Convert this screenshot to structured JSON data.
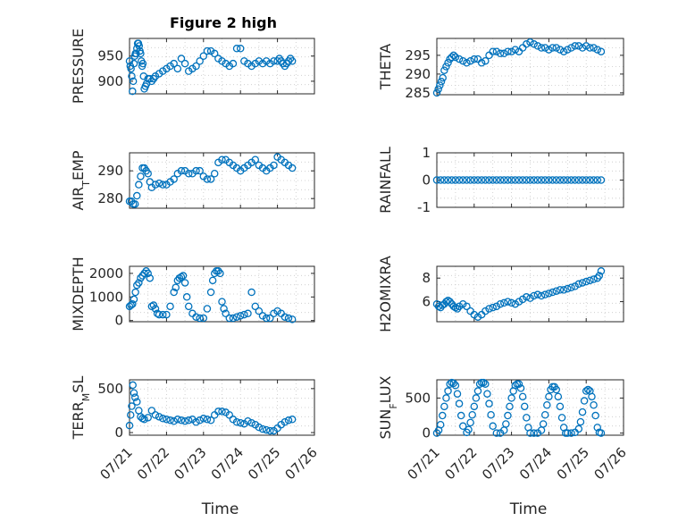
{
  "figure_title": "Figure 2 high",
  "colors": {
    "marker": "#0072BD",
    "axis": "#262626",
    "grid": "#c8c8c8"
  },
  "chart_data": [
    {
      "type": "scatter",
      "title": "Figure 2 high",
      "ylabel": "PRESSURE",
      "xlabel": "",
      "xlim": [
        0,
        5
      ],
      "ylim": [
        875,
        985
      ],
      "yticks": [
        900,
        950
      ],
      "grid": true,
      "x": [
        0,
        0.02,
        0.04,
        0.06,
        0.08,
        0.1,
        0.12,
        0.14,
        0.16,
        0.18,
        0.2,
        0.22,
        0.24,
        0.26,
        0.28,
        0.3,
        0.32,
        0.34,
        0.36,
        0.38,
        0.4,
        0.43,
        0.46,
        0.5,
        0.55,
        0.6,
        0.65,
        0.7,
        0.8,
        0.9,
        1.0,
        1.1,
        1.2,
        1.3,
        1.4,
        1.5,
        1.6,
        1.7,
        1.8,
        1.9,
        2.0,
        2.1,
        2.2,
        2.3,
        2.4,
        2.5,
        2.6,
        2.7,
        2.8,
        2.9,
        3.0,
        3.1,
        3.2,
        3.3,
        3.4,
        3.5,
        3.6,
        3.7,
        3.8,
        3.9,
        4.0,
        4.05,
        4.1,
        4.15,
        4.2,
        4.25,
        4.3,
        4.35,
        4.4
      ],
      "y": [
        940,
        930,
        925,
        910,
        880,
        900,
        935,
        950,
        955,
        955,
        965,
        975,
        975,
        970,
        960,
        955,
        940,
        930,
        935,
        910,
        885,
        890,
        895,
        905,
        905,
        900,
        905,
        910,
        915,
        920,
        925,
        930,
        935,
        925,
        945,
        935,
        920,
        925,
        930,
        940,
        950,
        960,
        960,
        955,
        945,
        940,
        935,
        930,
        935,
        965,
        965,
        940,
        935,
        930,
        935,
        940,
        935,
        940,
        935,
        940,
        940,
        945,
        940,
        935,
        930,
        935,
        940,
        945,
        940
      ]
    },
    {
      "type": "scatter",
      "title": "",
      "ylabel": "THETA",
      "xlabel": "",
      "xlim": [
        0,
        5
      ],
      "ylim": [
        284.5,
        299.5
      ],
      "yticks": [
        285,
        290,
        295
      ],
      "grid": true,
      "x": [
        0,
        0.04,
        0.08,
        0.12,
        0.16,
        0.2,
        0.25,
        0.3,
        0.35,
        0.4,
        0.45,
        0.5,
        0.6,
        0.7,
        0.8,
        0.9,
        1.0,
        1.1,
        1.2,
        1.3,
        1.4,
        1.5,
        1.6,
        1.7,
        1.8,
        1.9,
        2.0,
        2.1,
        2.2,
        2.3,
        2.4,
        2.5,
        2.6,
        2.7,
        2.8,
        2.9,
        3.0,
        3.1,
        3.2,
        3.3,
        3.4,
        3.5,
        3.6,
        3.7,
        3.8,
        3.9,
        4.0,
        4.1,
        4.2,
        4.3,
        4.4
      ],
      "y": [
        285,
        286,
        287,
        288,
        289,
        291,
        292,
        293,
        294,
        294.5,
        295,
        294.5,
        294,
        293.5,
        293,
        293.5,
        294,
        294,
        293,
        293.5,
        295,
        296,
        296,
        295.5,
        295.5,
        296,
        296,
        296.5,
        296,
        297,
        298,
        298.5,
        298,
        297.5,
        297,
        297,
        296.5,
        297,
        297,
        296.5,
        296,
        296.5,
        297,
        297.5,
        297.5,
        297,
        297.5,
        297,
        297,
        296.5,
        296
      ]
    },
    {
      "type": "scatter",
      "title": "",
      "ylabel": "AIR_TEMP",
      "xlabel": "",
      "xlim": [
        0,
        5
      ],
      "ylim": [
        276.5,
        296.5
      ],
      "yticks": [
        280,
        290
      ],
      "grid": true,
      "x": [
        0,
        0.05,
        0.1,
        0.15,
        0.2,
        0.25,
        0.3,
        0.35,
        0.4,
        0.45,
        0.5,
        0.55,
        0.6,
        0.7,
        0.8,
        0.9,
        1.0,
        1.1,
        1.2,
        1.3,
        1.4,
        1.5,
        1.6,
        1.7,
        1.8,
        1.9,
        2.0,
        2.1,
        2.2,
        2.3,
        2.4,
        2.5,
        2.6,
        2.7,
        2.8,
        2.9,
        3.0,
        3.1,
        3.2,
        3.3,
        3.4,
        3.5,
        3.6,
        3.7,
        3.8,
        3.9,
        4.0,
        4.1,
        4.2,
        4.3,
        4.4
      ],
      "y": [
        279,
        279,
        278,
        278,
        281,
        285,
        288,
        291,
        291,
        290,
        289,
        286,
        284,
        285,
        285.5,
        285,
        285,
        286,
        287,
        289,
        290,
        290,
        289,
        289,
        290,
        290,
        288,
        287,
        287,
        289,
        293,
        294,
        294,
        293,
        292,
        291,
        290,
        291,
        292,
        293,
        294,
        292,
        291,
        290,
        291,
        292,
        295,
        294,
        293,
        292,
        291
      ]
    },
    {
      "type": "scatter",
      "title": "",
      "ylabel": "RAINFALL",
      "xlabel": "",
      "xlim": [
        0,
        5
      ],
      "ylim": [
        -1,
        1
      ],
      "yticks": [
        -1,
        0,
        1
      ],
      "grid": true,
      "x": [
        0,
        0.1,
        0.2,
        0.3,
        0.4,
        0.5,
        0.6,
        0.7,
        0.8,
        0.9,
        1.0,
        1.1,
        1.2,
        1.3,
        1.4,
        1.5,
        1.6,
        1.7,
        1.8,
        1.9,
        2.0,
        2.1,
        2.2,
        2.3,
        2.4,
        2.5,
        2.6,
        2.7,
        2.8,
        2.9,
        3.0,
        3.1,
        3.2,
        3.3,
        3.4,
        3.5,
        3.6,
        3.7,
        3.8,
        3.9,
        4.0,
        4.1,
        4.2,
        4.3,
        4.4
      ],
      "y": [
        0,
        0,
        0,
        0,
        0,
        0,
        0,
        0,
        0,
        0,
        0,
        0,
        0,
        0,
        0,
        0,
        0,
        0,
        0,
        0,
        0,
        0,
        0,
        0,
        0,
        0,
        0,
        0,
        0,
        0,
        0,
        0,
        0,
        0,
        0,
        0,
        0,
        0,
        0,
        0,
        0,
        0,
        0,
        0,
        0
      ]
    },
    {
      "type": "scatter",
      "title": "",
      "ylabel": "MIXDEPTH",
      "xlabel": "",
      "xlim": [
        0,
        5
      ],
      "ylim": [
        -50,
        2300
      ],
      "yticks": [
        0,
        1000,
        2000
      ],
      "grid": true,
      "x": [
        0,
        0.04,
        0.08,
        0.12,
        0.16,
        0.2,
        0.25,
        0.3,
        0.35,
        0.4,
        0.45,
        0.5,
        0.55,
        0.6,
        0.65,
        0.7,
        0.75,
        0.8,
        0.9,
        1.0,
        1.1,
        1.2,
        1.25,
        1.3,
        1.35,
        1.4,
        1.45,
        1.5,
        1.55,
        1.6,
        1.7,
        1.8,
        1.9,
        2.0,
        2.1,
        2.2,
        2.25,
        2.3,
        2.35,
        2.4,
        2.45,
        2.5,
        2.55,
        2.6,
        2.7,
        2.8,
        2.9,
        3.0,
        3.1,
        3.2,
        3.3,
        3.4,
        3.5,
        3.6,
        3.7,
        3.8,
        3.9,
        4.0,
        4.1,
        4.2,
        4.3,
        4.4
      ],
      "y": [
        600,
        650,
        700,
        900,
        1200,
        1500,
        1600,
        1800,
        1900,
        2000,
        2100,
        2000,
        1800,
        600,
        650,
        500,
        300,
        250,
        250,
        250,
        600,
        1200,
        1400,
        1700,
        1800,
        1850,
        1900,
        1600,
        1000,
        600,
        300,
        150,
        100,
        100,
        500,
        1200,
        1700,
        2000,
        2100,
        2100,
        2000,
        800,
        500,
        300,
        100,
        100,
        150,
        200,
        250,
        300,
        1200,
        600,
        400,
        200,
        100,
        100,
        300,
        400,
        300,
        150,
        100,
        50
      ]
    },
    {
      "type": "scatter",
      "title": "",
      "ylabel": "H2OMIXRA",
      "xlabel": "",
      "xlim": [
        0,
        5
      ],
      "ylim": [
        4.3,
        9.0
      ],
      "yticks": [
        6,
        8
      ],
      "grid": true,
      "x": [
        0,
        0.05,
        0.1,
        0.15,
        0.2,
        0.25,
        0.3,
        0.35,
        0.4,
        0.45,
        0.5,
        0.55,
        0.6,
        0.7,
        0.8,
        0.9,
        1.0,
        1.1,
        1.2,
        1.3,
        1.4,
        1.5,
        1.6,
        1.7,
        1.8,
        1.9,
        2.0,
        2.1,
        2.2,
        2.3,
        2.4,
        2.5,
        2.6,
        2.7,
        2.8,
        2.9,
        3.0,
        3.1,
        3.2,
        3.3,
        3.4,
        3.5,
        3.6,
        3.7,
        3.8,
        3.9,
        4.0,
        4.1,
        4.2,
        4.3,
        4.35,
        4.4
      ],
      "y": [
        5.8,
        5.6,
        5.5,
        5.7,
        5.8,
        6.0,
        6.1,
        6.0,
        5.8,
        5.6,
        5.5,
        5.4,
        5.6,
        5.8,
        5.6,
        5.2,
        4.9,
        4.7,
        4.9,
        5.2,
        5.4,
        5.5,
        5.6,
        5.8,
        5.9,
        6.0,
        5.9,
        5.8,
        6.0,
        6.2,
        6.4,
        6.3,
        6.5,
        6.6,
        6.5,
        6.6,
        6.7,
        6.8,
        6.9,
        7.0,
        7.0,
        7.1,
        7.2,
        7.3,
        7.5,
        7.6,
        7.7,
        7.8,
        7.9,
        8.0,
        8.2,
        8.6
      ]
    },
    {
      "type": "scatter",
      "title": "",
      "ylabel": "TERR_MSL",
      "xlabel": "Time",
      "xlim": [
        0,
        5
      ],
      "ylim": [
        -30,
        600
      ],
      "yticks": [
        0,
        500
      ],
      "xtick_labels": [
        "07/21",
        "07/22",
        "07/23",
        "07/24",
        "07/25",
        "07/26"
      ],
      "grid": true,
      "x": [
        0,
        0.03,
        0.06,
        0.09,
        0.12,
        0.15,
        0.2,
        0.25,
        0.3,
        0.35,
        0.4,
        0.5,
        0.6,
        0.7,
        0.8,
        0.9,
        1.0,
        1.1,
        1.2,
        1.3,
        1.4,
        1.5,
        1.6,
        1.7,
        1.8,
        1.9,
        2.0,
        2.1,
        2.2,
        2.3,
        2.4,
        2.5,
        2.6,
        2.7,
        2.8,
        2.9,
        3.0,
        3.1,
        3.2,
        3.3,
        3.4,
        3.5,
        3.6,
        3.7,
        3.8,
        3.9,
        4.0,
        4.1,
        4.2,
        4.3,
        4.4
      ],
      "y": [
        80,
        200,
        300,
        540,
        450,
        400,
        350,
        250,
        180,
        160,
        150,
        170,
        250,
        200,
        180,
        160,
        150,
        140,
        130,
        150,
        140,
        130,
        140,
        150,
        120,
        140,
        160,
        150,
        140,
        200,
        240,
        240,
        230,
        200,
        150,
        120,
        110,
        100,
        130,
        110,
        90,
        60,
        40,
        30,
        20,
        20,
        50,
        90,
        120,
        140,
        150
      ]
    },
    {
      "type": "scatter",
      "title": "",
      "ylabel": "SUN_FLUX",
      "xlabel": "Time",
      "xlim": [
        0,
        5
      ],
      "ylim": [
        -30,
        760
      ],
      "yticks": [
        0,
        500
      ],
      "xtick_labels": [
        "07/21",
        "07/22",
        "07/23",
        "07/24",
        "07/25",
        "07/26"
      ],
      "grid": true,
      "x": [
        0,
        0.05,
        0.1,
        0.15,
        0.2,
        0.25,
        0.3,
        0.35,
        0.4,
        0.45,
        0.5,
        0.55,
        0.6,
        0.65,
        0.7,
        0.8,
        0.85,
        0.9,
        0.95,
        1.0,
        1.05,
        1.1,
        1.15,
        1.2,
        1.25,
        1.3,
        1.35,
        1.4,
        1.45,
        1.5,
        1.6,
        1.7,
        1.8,
        1.85,
        1.9,
        1.95,
        2.0,
        2.05,
        2.1,
        2.15,
        2.2,
        2.25,
        2.3,
        2.35,
        2.4,
        2.45,
        2.5,
        2.6,
        2.7,
        2.8,
        2.85,
        2.9,
        2.95,
        3.0,
        3.05,
        3.1,
        3.15,
        3.2,
        3.25,
        3.3,
        3.35,
        3.4,
        3.45,
        3.5,
        3.6,
        3.7,
        3.8,
        3.85,
        3.9,
        3.95,
        4.0,
        4.05,
        4.1,
        4.15,
        4.2,
        4.25,
        4.3,
        4.35,
        4.4
      ],
      "y": [
        0,
        40,
        120,
        250,
        380,
        500,
        600,
        700,
        720,
        710,
        680,
        560,
        420,
        250,
        100,
        10,
        50,
        150,
        260,
        380,
        500,
        600,
        700,
        720,
        720,
        700,
        560,
        420,
        260,
        100,
        0,
        0,
        40,
        130,
        250,
        380,
        500,
        600,
        680,
        700,
        700,
        640,
        520,
        380,
        220,
        80,
        0,
        0,
        0,
        40,
        130,
        260,
        400,
        520,
        620,
        660,
        660,
        620,
        520,
        380,
        220,
        80,
        0,
        0,
        0,
        10,
        60,
        160,
        300,
        460,
        600,
        620,
        600,
        520,
        400,
        250,
        80,
        10,
        0
      ]
    }
  ]
}
